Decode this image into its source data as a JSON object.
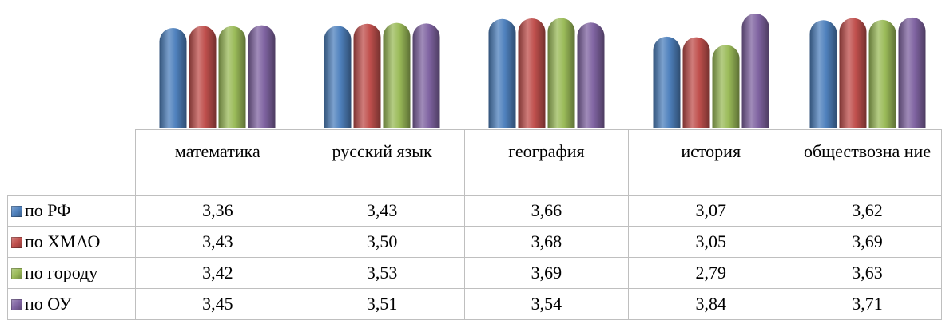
{
  "chart_data": {
    "type": "bar",
    "title": "",
    "xlabel": "",
    "ylabel": "",
    "categories": [
      "математика",
      "русский язык",
      "география",
      "история",
      "обществозна ние"
    ],
    "series": [
      {
        "name": "по РФ",
        "values": [
          3.36,
          3.43,
          3.66,
          3.07,
          3.62
        ],
        "color": "#4f81bd"
      },
      {
        "name": "по ХМАО",
        "values": [
          3.43,
          3.5,
          3.68,
          3.05,
          3.69
        ],
        "color": "#c0504d"
      },
      {
        "name": "по городу",
        "values": [
          3.42,
          3.53,
          3.69,
          2.79,
          3.63
        ],
        "color": "#9bbb59"
      },
      {
        "name": "по ОУ",
        "values": [
          3.45,
          3.51,
          3.54,
          3.84,
          3.71
        ],
        "color": "#8064a2"
      }
    ],
    "value_labels": [
      [
        "3,36",
        "3,43",
        "3,66",
        "3,07",
        "3,62"
      ],
      [
        "3,43",
        "3,50",
        "3,68",
        "3,05",
        "3,69"
      ],
      [
        "3,42",
        "3,53",
        "3,69",
        "2,79",
        "3,63"
      ],
      [
        "3,45",
        "3,51",
        "3,54",
        "3,84",
        "3,71"
      ]
    ],
    "legend_position": "data-table",
    "grid": false
  }
}
